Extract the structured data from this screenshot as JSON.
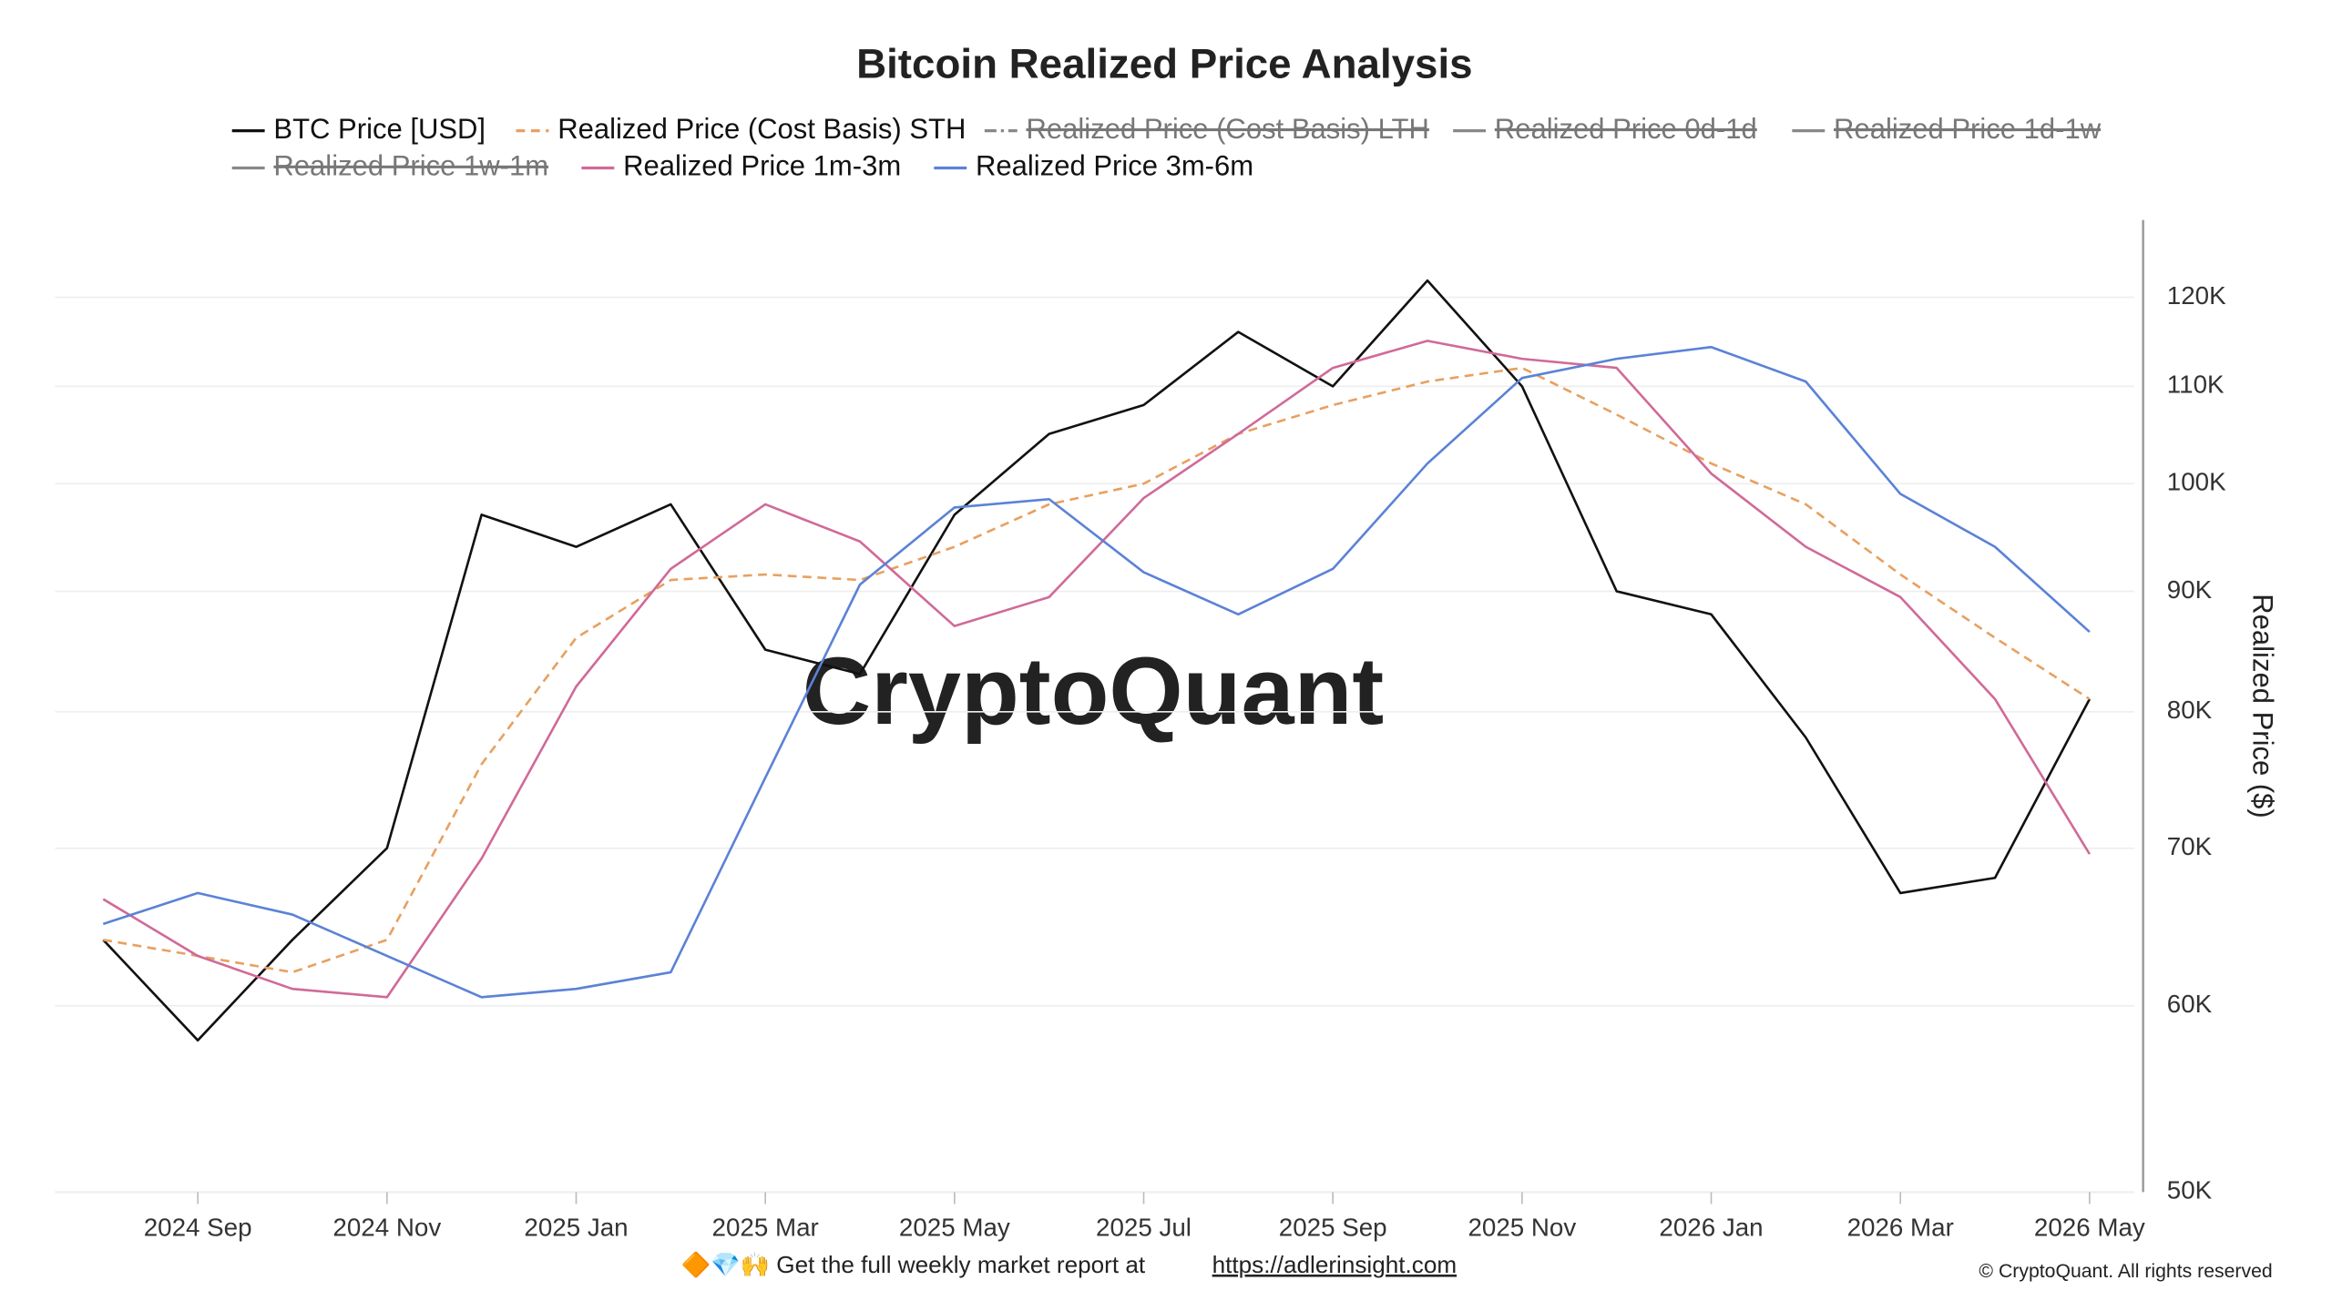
{
  "chart_data": {
    "type": "line",
    "title": "Bitcoin Realized Price Analysis",
    "y_label": "Realized Price ($)",
    "watermark": "CryptoQuant",
    "footer_text": "🔶💎🙌 Get the full weekly market report at",
    "footer_link": "https://adlerinsight.com",
    "copyright": "© CryptoQuant. All rights reserved",
    "log_scale": true,
    "grid": true,
    "legend_position": "top",
    "x": [
      "2024-08",
      "2024-09",
      "2024-10",
      "2024-11",
      "2024-12",
      "2025-01",
      "2025-02",
      "2025-03",
      "2025-04",
      "2025-05",
      "2025-06",
      "2025-07",
      "2025-08",
      "2025-09",
      "2025-10",
      "2025-11",
      "2025-12",
      "2026-01",
      "2026-02",
      "2026-03",
      "2026-04",
      "2026-05"
    ],
    "xticks": [
      {
        "value": "2024-09",
        "label": "2024 Sep"
      },
      {
        "value": "2024-11",
        "label": "2024 Nov"
      },
      {
        "value": "2025-01",
        "label": "2025 Jan"
      },
      {
        "value": "2025-03",
        "label": "2025 Mar"
      },
      {
        "value": "2025-05",
        "label": "2025 May"
      },
      {
        "value": "2025-07",
        "label": "2025 Jul"
      },
      {
        "value": "2025-09",
        "label": "2025 Sep"
      },
      {
        "value": "2025-11",
        "label": "2025 Nov"
      },
      {
        "value": "2026-01",
        "label": "2026 Jan"
      },
      {
        "value": "2026-03",
        "label": "2026 Mar"
      },
      {
        "value": "2026-05",
        "label": "2026 May"
      }
    ],
    "ylim": [
      50000,
      130000
    ],
    "yticks": [
      {
        "value": 50000,
        "label": "50K"
      },
      {
        "value": 60000,
        "label": "60K"
      },
      {
        "value": 70000,
        "label": "70K"
      },
      {
        "value": 80000,
        "label": "80K"
      },
      {
        "value": 90000,
        "label": "90K"
      },
      {
        "value": 100000,
        "label": "100K"
      },
      {
        "value": 110000,
        "label": "110K"
      },
      {
        "value": 120000,
        "label": "120K"
      }
    ],
    "series": [
      {
        "name": "BTC Price [USD]",
        "color": "#111111",
        "style": "solid",
        "visible": true,
        "values": [
          64000,
          58000,
          64000,
          70000,
          97000,
          94000,
          98000,
          85000,
          83000,
          97000,
          105000,
          108000,
          116000,
          110000,
          122000,
          110000,
          90000,
          88000,
          78000,
          67000,
          68000,
          81000
        ]
      },
      {
        "name": "Realized Price (Cost Basis) STH",
        "color": "#e8a060",
        "style": "dashed",
        "visible": true,
        "values": [
          64000,
          63000,
          62000,
          64000,
          76000,
          86000,
          91000,
          91500,
          91000,
          94000,
          98000,
          100000,
          105000,
          108000,
          110500,
          112000,
          107000,
          102000,
          98000,
          91500,
          86000,
          81000
        ]
      },
      {
        "name": "Realized Price (Cost Basis) LTH",
        "color": "#888888",
        "style": "dashdot",
        "visible": false
      },
      {
        "name": "Realized Price 0d-1d",
        "color": "#888888",
        "style": "solid",
        "visible": false
      },
      {
        "name": "Realized Price 1d-1w",
        "color": "#888888",
        "style": "solid",
        "visible": false
      },
      {
        "name": "Realized Price 1w-1m",
        "color": "#888888",
        "style": "solid",
        "visible": false
      },
      {
        "name": "Realized Price 1m-3m",
        "color": "#d06a98",
        "style": "solid",
        "visible": true,
        "values": [
          66600,
          63000,
          61000,
          60500,
          69300,
          82000,
          92000,
          98000,
          94500,
          87000,
          89500,
          98600,
          105000,
          112000,
          115000,
          113000,
          112000,
          101000,
          94000,
          89500,
          81000,
          69600
        ]
      },
      {
        "name": "Realized Price 3m-6m",
        "color": "#5b82d6",
        "style": "solid",
        "visible": true,
        "values": [
          65000,
          67000,
          65600,
          63000,
          60500,
          61000,
          62000,
          75000,
          90600,
          97700,
          98500,
          91700,
          88000,
          92000,
          102000,
          110900,
          113000,
          114300,
          110500,
          99000,
          94000,
          86500
        ]
      }
    ]
  }
}
